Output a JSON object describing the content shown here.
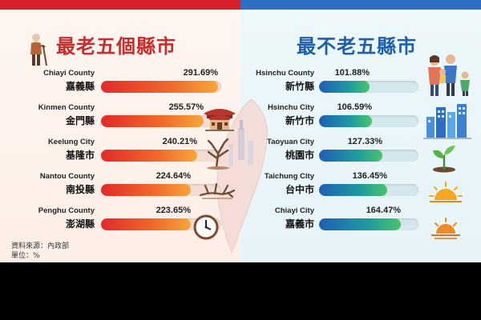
{
  "left": {
    "title": "最老五個縣市",
    "items": [
      {
        "en": "Chiayi County",
        "zh": "嘉義縣",
        "value": 291.69,
        "label": "291.69%",
        "icon": "elderly-person-icon"
      },
      {
        "en": "Kinmen County",
        "zh": "金門縣",
        "value": 255.57,
        "label": "255.57%",
        "icon": "temple-icon"
      },
      {
        "en": "Keelung City",
        "zh": "基隆市",
        "value": 240.21,
        "label": "240.21%",
        "icon": "bare-tree-icon"
      },
      {
        "en": "Nantou County",
        "zh": "南投縣",
        "value": 224.64,
        "label": "224.64%",
        "icon": "dry-branch-icon"
      },
      {
        "en": "Penghu County",
        "zh": "澎湖縣",
        "value": 223.65,
        "label": "223.65%",
        "icon": "clock-icon"
      }
    ],
    "source_line1": "資料來源：內政部",
    "source_line2": "單位：%",
    "colors": {
      "bar_start": "#e32a2a",
      "bar_end": "#f7a63a",
      "title": "#c62d2d",
      "topbar": "#d8202b"
    }
  },
  "right": {
    "title": "最不老五縣市",
    "items": [
      {
        "en": "Hsinchu County",
        "zh": "新竹縣",
        "value": 101.88,
        "label": "101.88%",
        "icon": "family-icon"
      },
      {
        "en": "Hsinchu City",
        "zh": "新竹市",
        "value": 106.59,
        "label": "106.59%",
        "icon": "city-skyline-icon"
      },
      {
        "en": "Taoyuan City",
        "zh": "桃園市",
        "value": 127.33,
        "label": "127.33%",
        "icon": "sprout-icon"
      },
      {
        "en": "Taichung City",
        "zh": "台中市",
        "value": 136.45,
        "label": "136.45%",
        "icon": "sunrise-icon"
      },
      {
        "en": "Chiayi City",
        "zh": "嘉義市",
        "value": 164.47,
        "label": "164.47%",
        "icon": "sunset-icon"
      }
    ],
    "colors": {
      "bar_start": "#1f5fb5",
      "bar_end": "#49c36a",
      "title": "#1f5fa8",
      "topbar": "#2f6fc1"
    }
  },
  "chart_data": [
    {
      "type": "bar",
      "title": "最老五個縣市",
      "categories": [
        "Chiayi County 嘉義縣",
        "Kinmen County 金門縣",
        "Keelung City 基隆市",
        "Nantou County 南投縣",
        "Penghu County 澎湖縣"
      ],
      "values": [
        291.69,
        255.57,
        240.21,
        224.64,
        223.65
      ],
      "orientation": "horizontal",
      "ylim": [
        0,
        300
      ]
    },
    {
      "type": "bar",
      "title": "最不老五縣市",
      "categories": [
        "Hsinchu County 新竹縣",
        "Hsinchu City 新竹市",
        "Taoyuan City 桃園市",
        "Taichung City 台中市",
        "Chiayi City 嘉義市"
      ],
      "values": [
        101.88,
        106.59,
        127.33,
        136.45,
        164.47
      ],
      "orientation": "horizontal",
      "ylim": [
        0,
        200
      ]
    }
  ]
}
